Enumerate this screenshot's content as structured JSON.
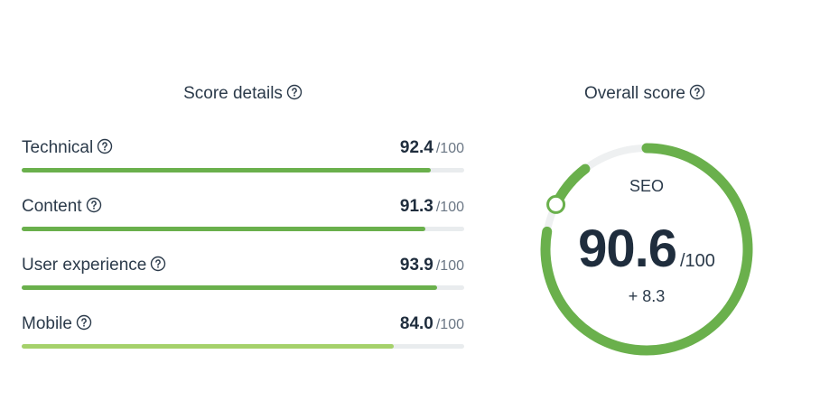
{
  "details": {
    "title": "Score details",
    "rows": [
      {
        "label": "Technical",
        "value": "92.4",
        "max": "/100",
        "fraction": 0.924,
        "color": "#6ab04c"
      },
      {
        "label": "Content",
        "value": "91.3",
        "max": "/100",
        "fraction": 0.913,
        "color": "#6ab04c"
      },
      {
        "label": "User experience",
        "value": "93.9",
        "max": "/100",
        "fraction": 0.939,
        "color": "#6ab04c"
      },
      {
        "label": "Mobile",
        "value": "84.0",
        "max": "/100",
        "fraction": 0.84,
        "color": "#a5d16b"
      }
    ]
  },
  "overall": {
    "title": "Overall score",
    "label": "SEO",
    "value": "90.6",
    "max": "/100",
    "change": "+ 8.3",
    "fraction": 0.906,
    "previous_fraction": 0.823,
    "color": "#6ab04c",
    "track_color": "#eef0f1"
  },
  "icons": {
    "help": "help-circle-icon"
  }
}
